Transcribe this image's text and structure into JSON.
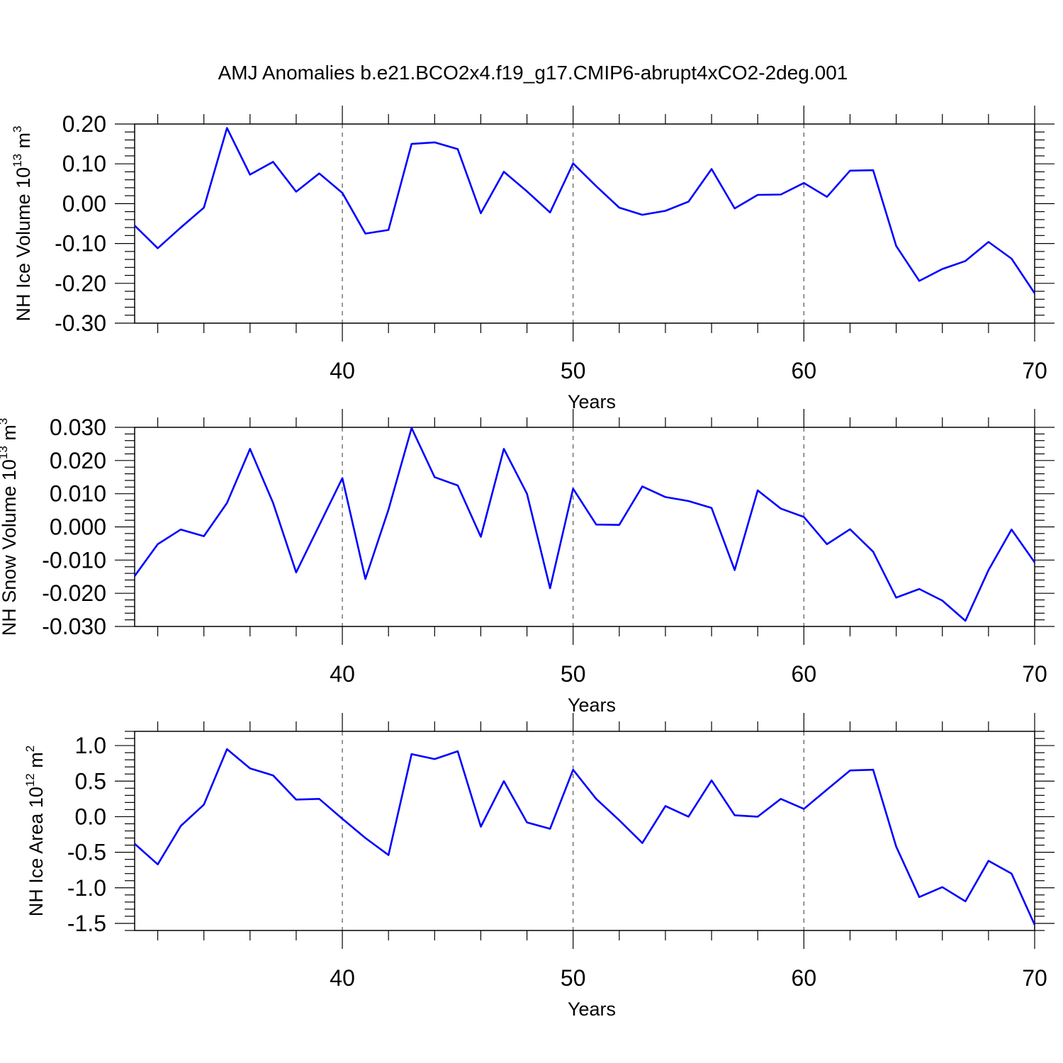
{
  "figure_title": "AMJ Anomalies b.e21.BCO2x4.f19_g17.CMIP6-abrupt4xCO2-2deg.001",
  "colors": {
    "series": "#0000ff",
    "frame": "#000000",
    "grid": "#555555"
  },
  "chart_data": [
    {
      "type": "line",
      "title": "AMJ Anomalies b.e21.BCO2x4.f19_g17.CMIP6-abrupt4xCO2-2deg.001",
      "xlabel": "Years",
      "ylabel": {
        "text": "NH Ice Volume 10",
        "sup": "13",
        "unit": " m",
        "unit_sup": "3"
      },
      "xlim": [
        31,
        70
      ],
      "ylim": [
        -0.3,
        0.2
      ],
      "x_ticks": [
        "40",
        "50",
        "60",
        "70"
      ],
      "y_ticks": [
        "0.20",
        "0.10",
        "0.00",
        "-0.10",
        "-0.20",
        "-0.30"
      ],
      "grid": "vertical dashed at major x ticks",
      "x": [
        31,
        32,
        33,
        34,
        35,
        36,
        37,
        38,
        39,
        40,
        41,
        42,
        43,
        44,
        45,
        46,
        47,
        48,
        49,
        50,
        51,
        52,
        53,
        54,
        55,
        56,
        57,
        58,
        59,
        60,
        61,
        62,
        63,
        64,
        65,
        66,
        67,
        68,
        69,
        70
      ],
      "series": [
        {
          "values": [
            -0.055,
            -0.112,
            -0.06,
            -0.01,
            0.19,
            0.073,
            0.105,
            0.03,
            0.076,
            0.027,
            -0.075,
            -0.066,
            0.15,
            0.154,
            0.137,
            -0.024,
            0.08,
            0.031,
            -0.022,
            0.101,
            0.044,
            -0.01,
            -0.028,
            -0.018,
            0.005,
            0.087,
            -0.012,
            0.022,
            0.023,
            0.052,
            0.017,
            0.083,
            0.084,
            -0.106,
            -0.194,
            -0.164,
            -0.144,
            -0.096,
            -0.138,
            -0.225
          ]
        }
      ]
    },
    {
      "type": "line",
      "xlabel": "Years",
      "ylabel": {
        "text": "NH Snow Volume 10",
        "sup": "13",
        "unit": " m",
        "unit_sup": "3"
      },
      "xlim": [
        31,
        70
      ],
      "ylim": [
        -0.03,
        0.03
      ],
      "x_ticks": [
        "40",
        "50",
        "60",
        "70"
      ],
      "y_ticks": [
        "0.030",
        "0.020",
        "0.010",
        "0.000",
        "-0.010",
        "-0.020",
        "-0.030"
      ],
      "grid": "vertical dashed at major x ticks",
      "x": [
        31,
        32,
        33,
        34,
        35,
        36,
        37,
        38,
        39,
        40,
        41,
        42,
        43,
        44,
        45,
        46,
        47,
        48,
        49,
        50,
        51,
        52,
        53,
        54,
        55,
        56,
        57,
        58,
        59,
        60,
        61,
        62,
        63,
        64,
        65,
        66,
        67,
        68,
        69,
        70
      ],
      "series": [
        {
          "values": [
            -0.0148,
            -0.0052,
            -0.0008,
            -0.0028,
            0.0072,
            0.0235,
            0.0072,
            -0.0137,
            0.0005,
            0.0147,
            -0.0157,
            0.0052,
            0.0298,
            0.015,
            0.0125,
            -0.003,
            0.0235,
            0.01,
            -0.0185,
            0.0115,
            0.0007,
            0.0006,
            0.0122,
            0.009,
            0.0078,
            0.0057,
            -0.013,
            0.011,
            0.0055,
            0.003,
            -0.0052,
            -0.0007,
            -0.0075,
            -0.0213,
            -0.0187,
            -0.0222,
            -0.0283,
            -0.013,
            -0.0008,
            -0.0107
          ]
        }
      ]
    },
    {
      "type": "line",
      "xlabel": "Years",
      "ylabel": {
        "text": "NH Ice Area 10",
        "sup": "12",
        "unit": " m",
        "unit_sup": "2"
      },
      "xlim": [
        31,
        70
      ],
      "ylim": [
        -1.6,
        1.2
      ],
      "x_ticks": [
        "40",
        "50",
        "60",
        "70"
      ],
      "y_ticks": [
        "1.0",
        "0.5",
        "0.0",
        "-0.5",
        "-1.0",
        "-1.5"
      ],
      "grid": "vertical dashed at major x ticks",
      "x": [
        31,
        32,
        33,
        34,
        35,
        36,
        37,
        38,
        39,
        40,
        41,
        42,
        43,
        44,
        45,
        46,
        47,
        48,
        49,
        50,
        51,
        52,
        53,
        54,
        55,
        56,
        57,
        58,
        59,
        60,
        61,
        62,
        63,
        64,
        65,
        66,
        67,
        68,
        69,
        70
      ],
      "series": [
        {
          "values": [
            -0.38,
            -0.67,
            -0.13,
            0.17,
            0.95,
            0.68,
            0.58,
            0.24,
            0.25,
            -0.03,
            -0.3,
            -0.54,
            0.88,
            0.81,
            0.92,
            -0.14,
            0.5,
            -0.08,
            -0.17,
            0.66,
            0.25,
            -0.05,
            -0.37,
            0.15,
            0.0,
            0.51,
            0.02,
            0.0,
            0.25,
            0.11,
            0.38,
            0.65,
            0.66,
            -0.42,
            -1.13,
            -0.99,
            -1.19,
            -0.62,
            -0.8,
            -1.52
          ]
        }
      ]
    }
  ]
}
